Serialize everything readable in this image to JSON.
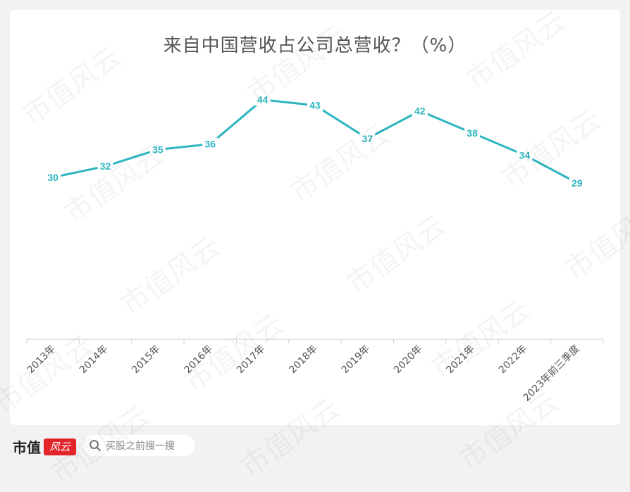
{
  "chart_data": {
    "type": "line",
    "title": "来自中国营收占公司总营收？（%）",
    "categories": [
      "2013年",
      "2014年",
      "2015年",
      "2016年",
      "2017年",
      "2018年",
      "2019年",
      "2020年",
      "2021年",
      "2022年",
      "2023年前三季度"
    ],
    "series": [
      {
        "values": [
          30,
          32,
          35,
          36,
          44,
          43,
          37,
          42,
          38,
          34,
          29
        ]
      }
    ],
    "ylim": [
      0,
      50
    ],
    "grid": false,
    "legend": "none",
    "line_color": "#2bb5c0",
    "label_color": "#2bb5c0"
  },
  "watermark": "市值风云",
  "footer": {
    "brand": "市值",
    "logo": "风云",
    "search_placeholder": "买股之前搜一搜"
  },
  "colors": {
    "background": "#f2f2f2",
    "card": "#ffffff",
    "brand_red": "#e4242b"
  }
}
